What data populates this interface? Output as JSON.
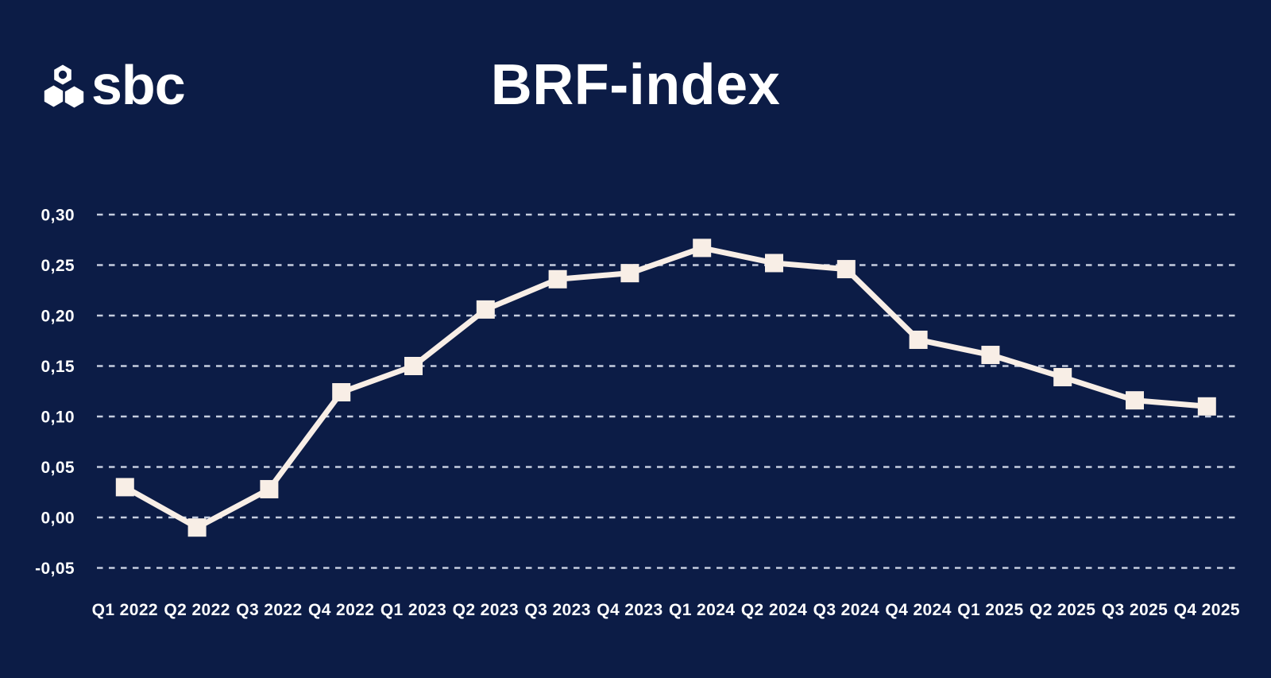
{
  "header": {
    "logo_text": "sbc",
    "title": "BRF-index"
  },
  "chart_data": {
    "type": "line",
    "title": "BRF-index",
    "categories": [
      "Q1 2022",
      "Q2 2022",
      "Q3 2022",
      "Q4 2022",
      "Q1 2023",
      "Q2 2023",
      "Q3 2023",
      "Q4 2023",
      "Q1 2024",
      "Q2 2024",
      "Q3 2024",
      "Q4 2024",
      "Q1 2025",
      "Q2 2025",
      "Q3 2025",
      "Q4 2025"
    ],
    "values": [
      0.03,
      -0.01,
      0.028,
      0.124,
      0.15,
      0.206,
      0.236,
      0.242,
      0.267,
      0.252,
      0.246,
      0.176,
      0.161,
      0.139,
      0.116,
      0.11
    ],
    "ylim": [
      -0.05,
      0.3
    ],
    "ytick_values": [
      0.3,
      0.25,
      0.2,
      0.15,
      0.1,
      0.05,
      0.0,
      -0.05
    ],
    "yticks": [
      "0,30",
      "0,25",
      "0,20",
      "0,15",
      "0,10",
      "0,05",
      "0,00",
      "-0,05"
    ],
    "xlabel": "",
    "ylabel": "",
    "grid": "horizontal-dashed",
    "legend": "none",
    "marker": "square",
    "colors": {
      "background": "#0c1c46",
      "series": "#f8eee6",
      "gridline": "#c5cddf",
      "text": "#ffffff"
    }
  }
}
